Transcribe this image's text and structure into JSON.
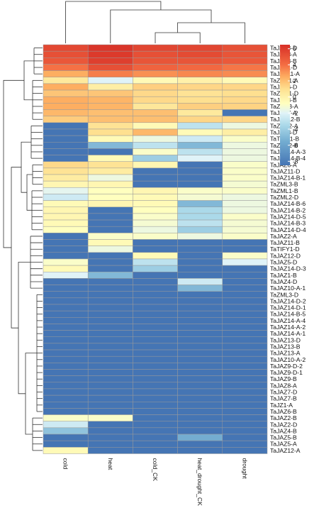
{
  "chart_data": {
    "type": "heatmap",
    "columns": [
      "cold",
      "heat",
      "cold_CK",
      "heat_drought_CK",
      "drought"
    ],
    "rows": [
      "TaJAZ3-D",
      "TaJAZ3-A",
      "TaJAZ3-B",
      "TaJAZ1-D",
      "TaJAZ11-A",
      "TaZML1-A",
      "TaJAZ6-D",
      "TaZML1-D",
      "TaJAZ8-B",
      "TaZML3-A",
      "TaJAZ7-A",
      "TaJAZ12-B",
      "TaZML2-A",
      "TaJAZ8-D",
      "TaTIFY1-B",
      "TaZML2-B",
      "TaJAZ14-A-3",
      "TaJAZ14-B-4",
      "TaJAZ6-A",
      "TaJAZ11-D",
      "TaJAZ14-B-1",
      "TaZML3-B",
      "TaZML1-B",
      "TaZML2-D",
      "TaJAZ14-B-6",
      "TaJAZ14-B-2",
      "TaJAZ14-D-5",
      "TaJAZ14-B-3",
      "TaJAZ14-D-4",
      "TaJAZ2-A",
      "TaJAZ11-B",
      "TaTIFY1-D",
      "TaJAZ12-D",
      "TaJAZ5-D",
      "TaJAZ14-D-3",
      "TaJAZ1-B",
      "TaJAZ4-D",
      "TaJAZ10-A-1",
      "TaZML3-D",
      "TaJAZ14-D-2",
      "TaJAZ14-D-1",
      "TaJAZ14-B-5",
      "TaJAZ14-A-4",
      "TaJAZ14-A-2",
      "TaJAZ14-A-1",
      "TaJAZ13-D",
      "TaJAZ13-B",
      "TaJAZ13-A",
      "TaJAZ10-A-2",
      "TaJAZ9-D-2",
      "TaJAZ9-D-1",
      "TaJAZ9-B",
      "TaJAZ8-A",
      "TaJAZ7-D",
      "TaJAZ7-B",
      "TaJZ1-A",
      "TaJAZ6-B",
      "TaJAZ2-B",
      "TaJAZ2-D",
      "TaJAZ4-B",
      "TaJAZ5-B",
      "TaJAZ5-A",
      "TaJAZ12-A"
    ],
    "values": [
      [
        5.5,
        6.3,
        5.6,
        5.6,
        5.2
      ],
      [
        5.2,
        6.1,
        5.2,
        5.4,
        5.0
      ],
      [
        4.9,
        5.9,
        5.0,
        5.0,
        4.8
      ],
      [
        3.9,
        5.2,
        4.4,
        4.2,
        3.8
      ],
      [
        2.5,
        3.6,
        3.2,
        3.4,
        3.3
      ],
      [
        0.5,
        -2.0,
        -0.5,
        0.0,
        -0.5
      ],
      [
        2.5,
        0.2,
        1.5,
        1.3,
        1.3
      ],
      [
        1.8,
        1.8,
        1.2,
        0.8,
        1.0
      ],
      [
        2.5,
        2.3,
        1.2,
        1.0,
        1.2
      ],
      [
        2.5,
        2.3,
        0.6,
        1.5,
        1.4
      ],
      [
        2.2,
        2.0,
        2.0,
        0.5,
        -8.5
      ],
      [
        1.6,
        2.0,
        2.0,
        1.3,
        1.3
      ],
      [
        -8.5,
        0.8,
        -0.5,
        -3.0,
        -1.5
      ],
      [
        -8.5,
        1.0,
        2.2,
        -0.5,
        0.2
      ],
      [
        -8.5,
        -0.5,
        -1.5,
        -2.5,
        -1.0
      ],
      [
        -8.5,
        -5.0,
        -3.0,
        -5.0,
        -1.5
      ],
      [
        -8.5,
        -8.5,
        -1.0,
        -3.0,
        -1.5
      ],
      [
        -8.5,
        -0.5,
        -4.0,
        -2.0,
        -1.5
      ],
      [
        1.2,
        0.8,
        -0.3,
        -8.5,
        -1.0
      ],
      [
        0.8,
        0.3,
        -8.5,
        -8.5,
        -1.0
      ],
      [
        0.3,
        -1.5,
        -8.5,
        -8.5,
        -1.0
      ],
      [
        -0.3,
        -0.3,
        -8.5,
        -8.5,
        -1.2
      ],
      [
        -1.8,
        -0.8,
        -0.3,
        -1.0,
        -1.0
      ],
      [
        -2.5,
        -0.8,
        -0.5,
        -1.2,
        -1.5
      ],
      [
        -0.5,
        -0.3,
        -0.5,
        -5.0,
        -1.5
      ],
      [
        -0.3,
        -8.5,
        -0.8,
        -3.5,
        -1.5
      ],
      [
        -0.3,
        -8.5,
        -1.0,
        -3.5,
        -1.0
      ],
      [
        -0.5,
        -8.5,
        -1.2,
        -3.0,
        -1.2
      ],
      [
        -0.8,
        -8.5,
        -1.5,
        -4.0,
        -1.2
      ],
      [
        -8.5,
        -1.0,
        -1.0,
        -1.5,
        -1.0
      ],
      [
        -8.5,
        -0.5,
        -8.5,
        -8.5,
        -8.5
      ],
      [
        -8.5,
        -1.5,
        -8.5,
        -8.5,
        -8.5
      ],
      [
        -8.5,
        -8.5,
        -0.5,
        -8.5,
        -1.0
      ],
      [
        -1.0,
        -8.5,
        -3.0,
        -8.5,
        -2.0
      ],
      [
        -0.5,
        -8.5,
        -4.0,
        -8.5,
        -8.5
      ],
      [
        -2.0,
        -5.0,
        -8.5,
        -8.5,
        -8.5
      ],
      [
        -8.5,
        -8.5,
        -8.5,
        -2.5,
        -8.5
      ],
      [
        -8.5,
        -8.5,
        -8.5,
        -5.0,
        -8.5
      ],
      [
        -8.5,
        -8.5,
        -8.5,
        -8.5,
        -8.5
      ],
      [
        -8.5,
        -8.5,
        -8.5,
        -8.5,
        -8.5
      ],
      [
        -8.5,
        -8.5,
        -8.5,
        -8.5,
        -8.5
      ],
      [
        -8.5,
        -8.5,
        -8.5,
        -8.5,
        -8.5
      ],
      [
        -8.5,
        -8.5,
        -8.5,
        -8.5,
        -8.5
      ],
      [
        -8.5,
        -8.5,
        -8.5,
        -8.5,
        -8.5
      ],
      [
        -8.5,
        -8.5,
        -8.5,
        -8.5,
        -8.5
      ],
      [
        -8.5,
        -8.5,
        -8.5,
        -8.5,
        -8.5
      ],
      [
        -8.5,
        -8.5,
        -8.5,
        -8.5,
        -8.5
      ],
      [
        -8.5,
        -8.5,
        -8.5,
        -8.5,
        -8.5
      ],
      [
        -8.5,
        -8.5,
        -8.5,
        -8.5,
        -8.5
      ],
      [
        -8.5,
        -8.5,
        -8.5,
        -8.5,
        -8.5
      ],
      [
        -8.5,
        -8.5,
        -8.5,
        -8.5,
        -8.5
      ],
      [
        -8.5,
        -8.5,
        -8.5,
        -8.5,
        -8.5
      ],
      [
        -8.5,
        -8.5,
        -8.5,
        -8.5,
        -8.5
      ],
      [
        -8.5,
        -8.5,
        -8.5,
        -8.5,
        -8.5
      ],
      [
        -8.5,
        -8.5,
        -8.5,
        -8.5,
        -8.5
      ],
      [
        -8.5,
        -8.5,
        -8.5,
        -8.5,
        -8.5
      ],
      [
        -8.5,
        -8.5,
        -8.5,
        -8.5,
        -8.5
      ],
      [
        -1.0,
        -1.0,
        -8.5,
        -8.5,
        -8.5
      ],
      [
        -2.5,
        -8.5,
        -8.5,
        -8.5,
        -8.5
      ],
      [
        -4.5,
        -8.5,
        -8.5,
        -8.5,
        -8.5
      ],
      [
        -8.5,
        -8.5,
        -8.5,
        -5.5,
        -8.5
      ],
      [
        -8.5,
        -8.5,
        -8.5,
        -8.5,
        -8.5
      ],
      [
        -0.5,
        -8.5,
        -8.5,
        -8.5,
        -8.5
      ]
    ],
    "color_scale": {
      "min": -8.5,
      "max": 6.5,
      "stops": [
        {
          "value": -8.5,
          "color": "#4575b4"
        },
        {
          "value": -5.5,
          "color": "#74add1"
        },
        {
          "value": -3.5,
          "color": "#abd9e9"
        },
        {
          "value": -2.0,
          "color": "#e0f3f8"
        },
        {
          "value": -0.8,
          "color": "#ffffbf"
        },
        {
          "value": 1.0,
          "color": "#fee090"
        },
        {
          "value": 2.5,
          "color": "#fdae61"
        },
        {
          "value": 4.0,
          "color": "#f46d43"
        },
        {
          "value": 6.5,
          "color": "#d73027"
        }
      ]
    },
    "legend": {
      "placement": "top-right",
      "ticks": [
        "6",
        "4",
        "2",
        "0",
        "-2",
        "-4",
        "-6",
        "-8"
      ],
      "tick_values": [
        6,
        4,
        2,
        0,
        -2,
        -4,
        -6,
        -8
      ]
    },
    "dendrogram_rows": true,
    "dendrogram_columns": true,
    "grid": true
  }
}
